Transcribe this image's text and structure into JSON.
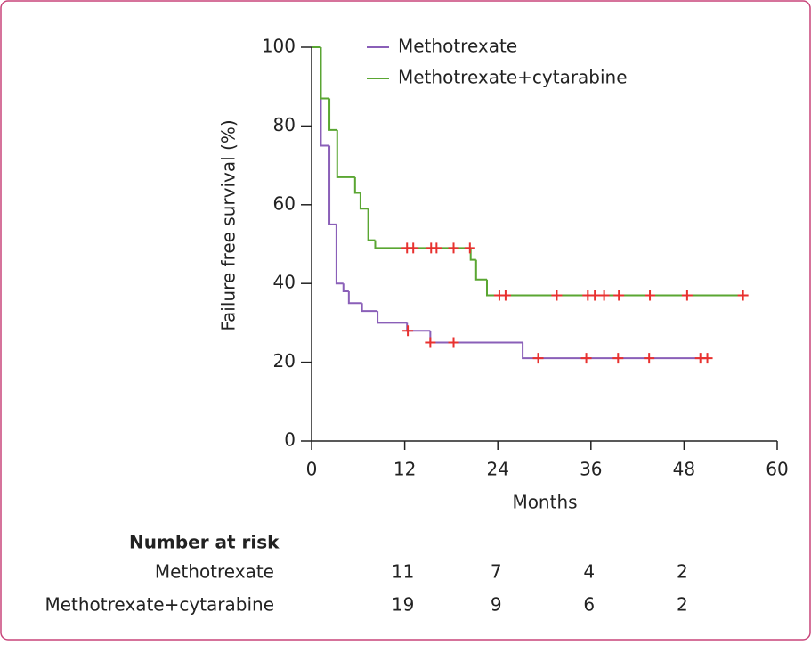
{
  "chart_data": {
    "type": "step",
    "xlabel": "Months",
    "ylabel": "Failure free survival (%)",
    "xlim": [
      0,
      60
    ],
    "xticks": [
      0,
      12,
      24,
      36,
      48,
      60
    ],
    "ylim": [
      0,
      100
    ],
    "yticks": [
      0,
      20,
      40,
      60,
      80,
      100
    ],
    "censor_color": "#e8312f",
    "series": [
      {
        "name": "Methotrexate",
        "color": "#8a5fb8",
        "x": [
          0,
          1.2,
          2.3,
          3.2,
          4.1,
          4.8,
          6.5,
          8.5,
          12.3,
          15.3,
          27.2,
          51.0
        ],
        "values": [
          100,
          75,
          55,
          40,
          38,
          35,
          33,
          30,
          28,
          25,
          21,
          21
        ],
        "censored_x": [
          12.4,
          15.3,
          18.3,
          29.2,
          35.4,
          39.5,
          43.5,
          50.1,
          51.0
        ],
        "censored_y": [
          28,
          25,
          25,
          21,
          21,
          21,
          21,
          21,
          21
        ]
      },
      {
        "name": "Methotrexate+cytarabine",
        "color": "#5aa632",
        "x": [
          0,
          1.2,
          2.3,
          3.3,
          5.6,
          6.3,
          7.3,
          8.2,
          20.5,
          21.2,
          22.6,
          55.6
        ],
        "values": [
          100,
          87,
          79,
          67,
          63,
          59,
          51,
          49,
          46,
          41,
          37,
          37
        ],
        "censored_x": [
          12.3,
          13.1,
          15.4,
          16.1,
          18.3,
          20.4,
          24.2,
          25.0,
          31.6,
          35.6,
          36.5,
          37.7,
          39.6,
          43.6,
          48.4,
          55.6
        ],
        "censored_y": [
          49,
          49,
          49,
          49,
          49,
          49,
          37,
          37,
          37,
          37,
          37,
          37,
          37,
          37,
          37,
          37
        ]
      }
    ],
    "risk_table": {
      "title": "Number at risk",
      "rows": [
        {
          "label": "Methotrexate",
          "counts": [
            11,
            7,
            4,
            2
          ]
        },
        {
          "label": "Methotrexate+cytarabine",
          "counts": [
            19,
            9,
            6,
            2
          ]
        }
      ]
    }
  }
}
